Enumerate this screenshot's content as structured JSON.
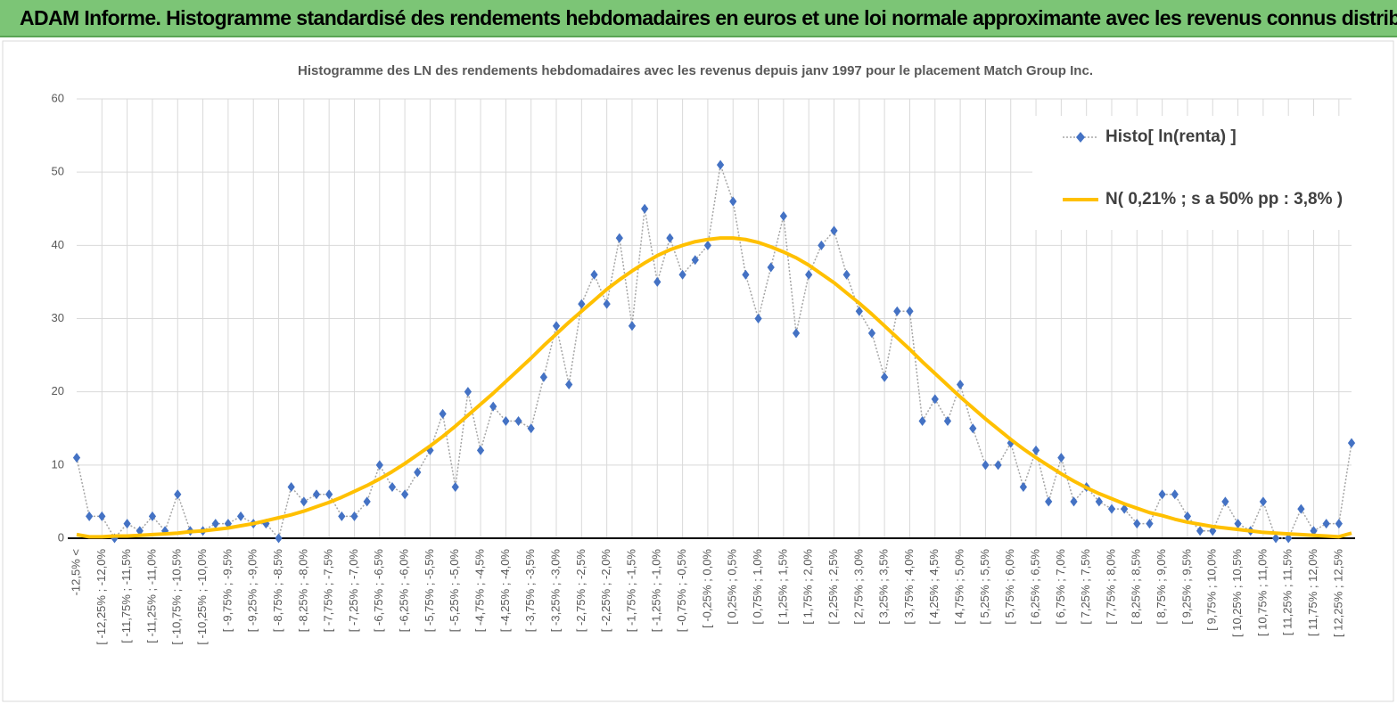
{
  "header": {
    "title": "ADAM Informe. Histogramme standardisé des rendements hebdomadaires en euros et une loi normale approximante avec les revenus connus distribués"
  },
  "chart_data": {
    "type": "line",
    "title": "Histogramme  des LN des rendements hebdomadaires avec les revenus depuis janv 1997 pour le placement Match Group Inc.",
    "categories": [
      "-12,5% <",
      null,
      "[ -12,25% ; -12,0%",
      null,
      "[ -11,75% ; -11,5%",
      null,
      "[ -11,25% ; -11,0%",
      null,
      "[ -10,75% ; -10,5%",
      null,
      "[ -10,25% ; -10,0%",
      null,
      "[ -9,75% ; -9,5%",
      null,
      "[ -9,25% ; -9,0%",
      null,
      "[ -8,75% ; -8,5%",
      null,
      "[ -8,25% ; -8,0%",
      null,
      "[ -7,75% ; -7,5%",
      null,
      "[ -7,25% ; -7,0%",
      null,
      "[ -6,75% ; -6,5%",
      null,
      "[ -6,25% ; -6,0%",
      null,
      "[ -5,75% ; -5,5%",
      null,
      "[ -5,25% ; -5,0%",
      null,
      "[ -4,75% ; -4,5%",
      null,
      "[ -4,25% ; -4,0%",
      null,
      "[ -3,75% ; -3,5%",
      null,
      "[ -3,25% ; -3,0%",
      null,
      "[ -2,75% ; -2,5%",
      null,
      "[ -2,25% ; -2,0%",
      null,
      "[ -1,75% ; -1,5%",
      null,
      "[ -1,25% ; -1,0%",
      null,
      "[ -0,75% ; -0,5%",
      null,
      "[ -0,25% ; 0,0%",
      null,
      "[ 0,25% ; 0,5%",
      null,
      "[ 0,75% ; 1,0%",
      null,
      "[ 1,25% ; 1,5%",
      null,
      "[ 1,75% ; 2,0%",
      null,
      "[ 2,25% ; 2,5%",
      null,
      "[ 2,75% ; 3,0%",
      null,
      "[ 3,25% ; 3,5%",
      null,
      "[ 3,75% ; 4,0%",
      null,
      "[ 4,25% ; 4,5%",
      null,
      "[ 4,75% ; 5,0%",
      null,
      "[ 5,25% ; 5,5%",
      null,
      "[ 5,75% ; 6,0%",
      null,
      "[ 6,25% ; 6,5%",
      null,
      "[ 6,75% ; 7,0%",
      null,
      "[ 7,25% ; 7,5%",
      null,
      "[ 7,75% ; 8,0%",
      null,
      "[ 8,25% ; 8,5%",
      null,
      "[ 8,75% ; 9,0%",
      null,
      "[ 9,25% ; 9,5%",
      null,
      "[ 9,75% ; 10,0%",
      null,
      "[ 10,25% ; 10,5%",
      null,
      "[ 10,75% ; 11,0%",
      null,
      "[ 11,25% ; 11,5%",
      null,
      "[ 11,75% ; 12,0%",
      null,
      "[ 12,25% ; 12,5%",
      null
    ],
    "series": [
      {
        "name": "Histo[ ln(renta) ]",
        "color": "#4472c4",
        "values": [
          11,
          3,
          3,
          0,
          2,
          1,
          3,
          1,
          6,
          1,
          1,
          2,
          2,
          3,
          2,
          2,
          0,
          7,
          5,
          6,
          6,
          3,
          3,
          5,
          10,
          7,
          6,
          9,
          12,
          17,
          7,
          20,
          12,
          18,
          16,
          16,
          15,
          22,
          29,
          21,
          32,
          36,
          32,
          41,
          29,
          45,
          35,
          41,
          36,
          38,
          40,
          51,
          46,
          36,
          30,
          37,
          44,
          28,
          36,
          40,
          42,
          36,
          31,
          28,
          22,
          31,
          31,
          16,
          19,
          16,
          21,
          15,
          10,
          10,
          13,
          7,
          12,
          5,
          11,
          5,
          7,
          5,
          4,
          4,
          2,
          2,
          6,
          6,
          3,
          1,
          1,
          5,
          2,
          1,
          5,
          0,
          0,
          4,
          1,
          2,
          2,
          13
        ]
      },
      {
        "name": "N( 0,21% ; s a 50% pp : 3,8% )",
        "color": "#ffc000",
        "values": [
          0.5,
          0.2,
          0.2,
          0.3,
          0.3,
          0.4,
          0.5,
          0.6,
          0.7,
          0.9,
          1.0,
          1.2,
          1.4,
          1.7,
          2.0,
          2.4,
          2.8,
          3.2,
          3.7,
          4.3,
          4.9,
          5.6,
          6.4,
          7.2,
          8.1,
          9.1,
          10.2,
          11.4,
          12.6,
          13.9,
          15.3,
          16.8,
          18.3,
          19.8,
          21.4,
          23.0,
          24.6,
          26.3,
          27.9,
          29.5,
          31.0,
          32.5,
          34.0,
          35.3,
          36.5,
          37.6,
          38.6,
          39.4,
          40.0,
          40.5,
          40.8,
          41.0,
          41.0,
          40.8,
          40.4,
          39.8,
          39.1,
          38.3,
          37.3,
          36.1,
          34.9,
          33.5,
          32.1,
          30.6,
          29.0,
          27.4,
          25.8,
          24.1,
          22.5,
          20.9,
          19.3,
          17.8,
          16.3,
          14.9,
          13.5,
          12.2,
          11.0,
          9.9,
          8.8,
          7.8,
          6.9,
          6.1,
          5.4,
          4.7,
          4.1,
          3.5,
          3.1,
          2.6,
          2.2,
          1.9,
          1.6,
          1.4,
          1.2,
          1.0,
          0.8,
          0.7,
          0.6,
          0.5,
          0.4,
          0.3,
          0.2,
          0.7
        ]
      }
    ],
    "ylim": [
      0,
      60
    ],
    "yticks": [
      0,
      10,
      20,
      30,
      40,
      50,
      60
    ],
    "grid": true,
    "legend": "top-right"
  }
}
